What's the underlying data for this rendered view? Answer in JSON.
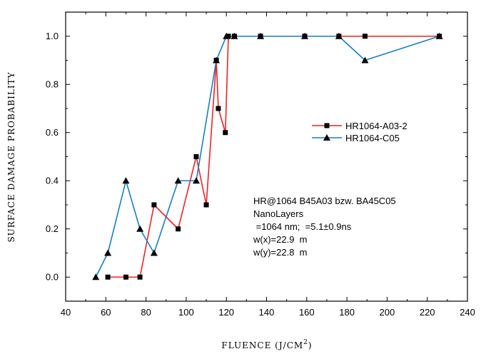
{
  "chart_data": {
    "type": "line",
    "xlabel": "FLUENCE (J/CM",
    "xlabel_sup": "2",
    "xlabel_close": ")",
    "ylabel": "SURFACE DAMAGE PROBABILITY",
    "xlim": [
      40,
      240
    ],
    "ylim": [
      -0.1,
      1.1
    ],
    "xticks": [
      40,
      60,
      80,
      100,
      120,
      140,
      160,
      180,
      200,
      220,
      240
    ],
    "yticks": [
      0.0,
      0.2,
      0.4,
      0.6,
      0.8,
      1.0
    ],
    "xtick_labels": [
      "40",
      "60",
      "80",
      "100",
      "120",
      "140",
      "160",
      "180",
      "200",
      "220",
      "240"
    ],
    "ytick_labels": [
      "0.0",
      "0.2",
      "0.4",
      "0.6",
      "0.8",
      "1.0"
    ],
    "grid": false,
    "legend_position": "right-middle",
    "series": [
      {
        "name": "HR1064-A03-2",
        "color": "#e8242a",
        "marker": "square",
        "x": [
          61,
          70,
          77,
          84,
          96,
          105,
          110,
          115,
          116,
          119.5,
          121,
          124,
          137,
          159,
          176,
          189,
          226
        ],
        "y": [
          0.0,
          0.0,
          0.0,
          0.3,
          0.2,
          0.5,
          0.3,
          0.9,
          0.7,
          0.6,
          1.0,
          1.0,
          1.0,
          1.0,
          1.0,
          1.0,
          1.0
        ]
      },
      {
        "name": "HR1064-C05",
        "color": "#1a7dc0",
        "marker": "triangle",
        "x": [
          55,
          61,
          70,
          77,
          84,
          96,
          105,
          115,
          120,
          124,
          137,
          159,
          176,
          189,
          226
        ],
        "y": [
          0.0,
          0.1,
          0.4,
          0.2,
          0.1,
          0.4,
          0.4,
          0.9,
          1.0,
          1.0,
          1.0,
          1.0,
          1.0,
          0.9,
          1.0
        ]
      }
    ],
    "annotation_lines": [
      "HR@1064 B45A03 bzw. BA45C05",
      "NanoLayers",
      " =1064 nm;  =5.1±0.9ns",
      "w(x)=22.9  m",
      "w(y)=22.8  m"
    ]
  }
}
